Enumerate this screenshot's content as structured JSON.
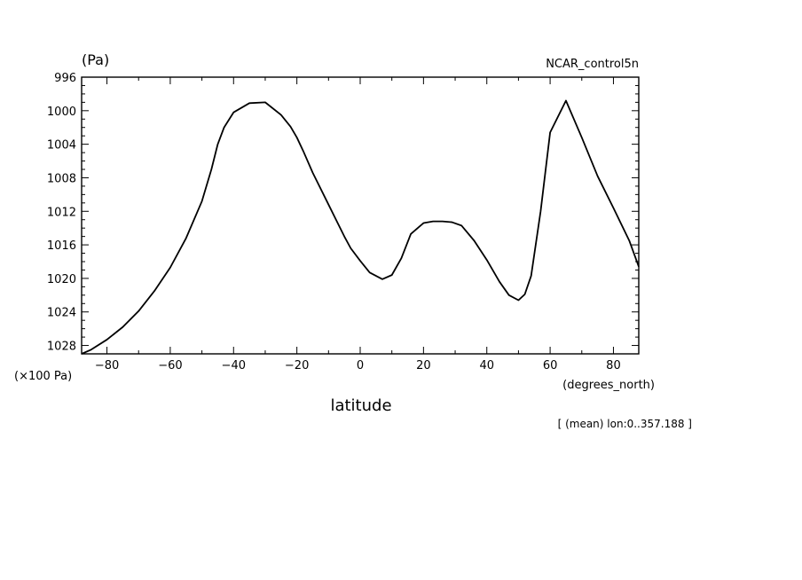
{
  "chart_data": {
    "type": "line",
    "title": "NCAR_control5n",
    "ylabel_top": "(Pa)",
    "ylabel_bottom": "(×100 Pa)",
    "xlabel": "latitude",
    "xunit": "(degrees_north)",
    "note": "[ (mean) lon:0..357.188 ]",
    "xlim": [
      -88,
      88
    ],
    "ylim": [
      996,
      1029
    ],
    "y_inverted": true,
    "x_ticks": [
      -80,
      -60,
      -40,
      -20,
      0,
      20,
      40,
      60,
      80
    ],
    "x_tick_labels": [
      "−80",
      "−60",
      "−40",
      "−20",
      "0",
      "20",
      "40",
      "60",
      "80"
    ],
    "y_ticks": [
      996,
      1000,
      1004,
      1008,
      1012,
      1016,
      1020,
      1024,
      1028
    ],
    "y_tick_labels": [
      "996",
      "1000",
      "1004",
      "1008",
      "1012",
      "1016",
      "1020",
      "1024",
      "1028"
    ],
    "grid": false,
    "line_color": "#000000",
    "series": [
      {
        "x": [
          -88,
          -85,
          -80,
          -75,
          -70,
          -65,
          -60,
          -55,
          -50,
          -47,
          -45,
          -43,
          -40,
          -35,
          -30,
          -25,
          -22,
          -20,
          -18,
          -15,
          -10,
          -5,
          -3,
          0,
          3,
          7,
          10,
          13,
          16,
          20,
          23,
          26,
          29,
          32,
          36,
          40,
          44,
          47,
          50,
          52,
          54,
          57,
          60,
          65,
          70,
          75,
          80,
          85,
          88
        ],
        "y": [
          1029,
          1028.5,
          1027.3,
          1025.8,
          1023.9,
          1021.5,
          1018.7,
          1015.2,
          1010.8,
          1007.0,
          1004.0,
          1002.0,
          1000.2,
          999.1,
          999.0,
          1000.5,
          1001.9,
          1003.2,
          1004.8,
          1007.4,
          1011.2,
          1015.0,
          1016.4,
          1017.9,
          1019.3,
          1020.1,
          1019.6,
          1017.6,
          1014.7,
          1013.4,
          1013.2,
          1013.2,
          1013.3,
          1013.7,
          1015.5,
          1017.8,
          1020.4,
          1022.0,
          1022.6,
          1021.9,
          1019.7,
          1012.0,
          1002.6,
          998.8,
          1003.2,
          1007.8,
          1011.6,
          1015.5,
          1018.6
        ]
      }
    ]
  }
}
